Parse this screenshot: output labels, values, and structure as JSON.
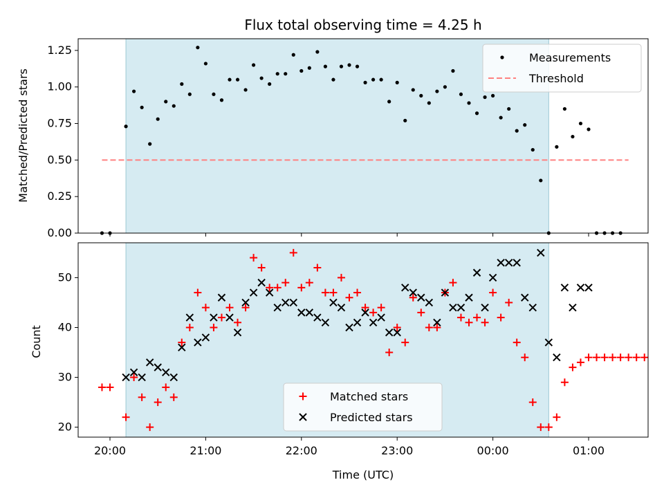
{
  "chart_data": [
    {
      "type": "scatter",
      "title": "Flux total observing time = 4.25 h",
      "xlabel": "",
      "ylabel": "Matched/Predicted stars",
      "ylim": [
        0,
        1.33
      ],
      "yticks": [
        "0.00",
        "0.25",
        "0.50",
        "0.75",
        "1.00",
        "1.25"
      ],
      "observing_window": [
        "20:10",
        "00:35"
      ],
      "legend": {
        "placement": "top-right",
        "entries": [
          "Measurements",
          "Threshold"
        ]
      },
      "threshold": {
        "name": "Threshold",
        "value": 0.5,
        "x_range": [
          "19:55",
          "01:25"
        ],
        "color": "#ff8080"
      },
      "series": [
        {
          "name": "Measurements",
          "color": "#000000",
          "x": [
            "19:55",
            "20:00",
            "20:10",
            "20:15",
            "20:20",
            "20:25",
            "20:30",
            "20:35",
            "20:40",
            "20:45",
            "20:50",
            "20:55",
            "21:00",
            "21:05",
            "21:10",
            "21:15",
            "21:20",
            "21:25",
            "21:30",
            "21:35",
            "21:40",
            "21:45",
            "21:50",
            "21:55",
            "22:00",
            "22:05",
            "22:10",
            "22:15",
            "22:20",
            "22:25",
            "22:30",
            "22:35",
            "22:40",
            "22:45",
            "22:50",
            "22:55",
            "23:00",
            "23:05",
            "23:10",
            "23:15",
            "23:20",
            "23:25",
            "23:30",
            "23:35",
            "23:40",
            "23:45",
            "23:50",
            "23:55",
            "00:00",
            "00:05",
            "00:10",
            "00:15",
            "00:20",
            "00:25",
            "00:30",
            "00:35",
            "00:40",
            "00:45",
            "00:50",
            "00:55",
            "01:00",
            "01:05",
            "01:10",
            "01:15",
            "01:20"
          ],
          "values": [
            0,
            0,
            0.73,
            0.97,
            0.86,
            0.61,
            0.78,
            0.9,
            0.87,
            1.02,
            0.95,
            1.27,
            1.16,
            0.95,
            0.91,
            1.05,
            1.05,
            0.98,
            1.15,
            1.06,
            1.02,
            1.09,
            1.09,
            1.22,
            1.11,
            1.13,
            1.24,
            1.14,
            1.05,
            1.14,
            1.15,
            1.14,
            1.03,
            1.05,
            1.05,
            0.9,
            1.03,
            0.77,
            0.98,
            0.94,
            0.89,
            0.97,
            1.0,
            1.11,
            0.95,
            0.89,
            0.82,
            0.93,
            0.94,
            0.79,
            0.85,
            0.7,
            0.74,
            0.57,
            0.36,
            0,
            0.59,
            0.85,
            0.66,
            0.75,
            0.71,
            0,
            0,
            0,
            0
          ]
        }
      ]
    },
    {
      "type": "scatter",
      "title": "",
      "xlabel": "Time (UTC)",
      "ylabel": "Count",
      "ylim": [
        18,
        57
      ],
      "yticks": [
        "20",
        "30",
        "40",
        "50"
      ],
      "xticks": [
        "20:00",
        "21:00",
        "22:00",
        "23:00",
        "00:00",
        "01:00"
      ],
      "legend": {
        "placement": "bottom-center",
        "entries": [
          "Matched stars",
          "Predicted stars"
        ]
      },
      "series": [
        {
          "name": "Matched stars",
          "color": "#ff0000",
          "marker": "plus",
          "x": [
            "19:55",
            "20:00",
            "20:10",
            "20:15",
            "20:20",
            "20:25",
            "20:30",
            "20:35",
            "20:40",
            "20:45",
            "20:50",
            "20:55",
            "21:00",
            "21:05",
            "21:10",
            "21:15",
            "21:20",
            "21:25",
            "21:30",
            "21:35",
            "21:40",
            "21:45",
            "21:50",
            "21:55",
            "22:00",
            "22:05",
            "22:10",
            "22:15",
            "22:20",
            "22:25",
            "22:30",
            "22:35",
            "22:40",
            "22:45",
            "22:50",
            "22:55",
            "23:00",
            "23:05",
            "23:10",
            "23:15",
            "23:20",
            "23:25",
            "23:30",
            "23:35",
            "23:40",
            "23:45",
            "23:50",
            "23:55",
            "00:00",
            "00:05",
            "00:10",
            "00:15",
            "00:20",
            "00:25",
            "00:30",
            "00:35",
            "00:40",
            "00:45",
            "00:50",
            "00:55",
            "01:00",
            "01:05",
            "01:10",
            "01:15",
            "01:20",
            "01:25",
            "01:30",
            "01:35"
          ],
          "values": [
            28,
            28,
            22,
            30,
            26,
            20,
            25,
            28,
            26,
            37,
            40,
            47,
            44,
            40,
            42,
            44,
            41,
            44,
            54,
            52,
            48,
            48,
            49,
            55,
            48,
            49,
            52,
            47,
            47,
            50,
            46,
            47,
            44,
            43,
            44,
            35,
            40,
            37,
            46,
            43,
            40,
            40,
            47,
            49,
            42,
            41,
            42,
            41,
            47,
            42,
            45,
            37,
            34,
            25,
            20,
            20,
            22,
            29,
            32,
            33,
            34,
            34,
            34,
            34,
            34,
            34,
            34,
            34
          ]
        },
        {
          "name": "Predicted stars",
          "color": "#000000",
          "marker": "x",
          "x": [
            "20:10",
            "20:15",
            "20:20",
            "20:25",
            "20:30",
            "20:35",
            "20:40",
            "20:45",
            "20:50",
            "20:55",
            "21:00",
            "21:05",
            "21:10",
            "21:15",
            "21:20",
            "21:25",
            "21:30",
            "21:35",
            "21:40",
            "21:45",
            "21:50",
            "21:55",
            "22:00",
            "22:05",
            "22:10",
            "22:15",
            "22:20",
            "22:25",
            "22:30",
            "22:35",
            "22:40",
            "22:45",
            "22:50",
            "22:55",
            "23:00",
            "23:05",
            "23:10",
            "23:15",
            "23:20",
            "23:25",
            "23:30",
            "23:35",
            "23:40",
            "23:45",
            "23:50",
            "23:55",
            "00:00",
            "00:05",
            "00:10",
            "00:15",
            "00:20",
            "00:25",
            "00:30",
            "00:35",
            "00:40",
            "00:45",
            "00:50",
            "00:55",
            "01:00"
          ],
          "values": [
            30,
            31,
            30,
            33,
            32,
            31,
            30,
            36,
            42,
            37,
            38,
            42,
            46,
            42,
            39,
            45,
            47,
            49,
            47,
            44,
            45,
            45,
            43,
            43,
            42,
            41,
            45,
            44,
            40,
            41,
            43,
            41,
            42,
            39,
            39,
            48,
            47,
            46,
            45,
            41,
            47,
            44,
            44,
            46,
            51,
            44,
            50,
            53,
            53,
            53,
            46,
            44,
            55,
            37,
            34,
            48,
            44,
            48,
            48
          ]
        }
      ]
    }
  ]
}
